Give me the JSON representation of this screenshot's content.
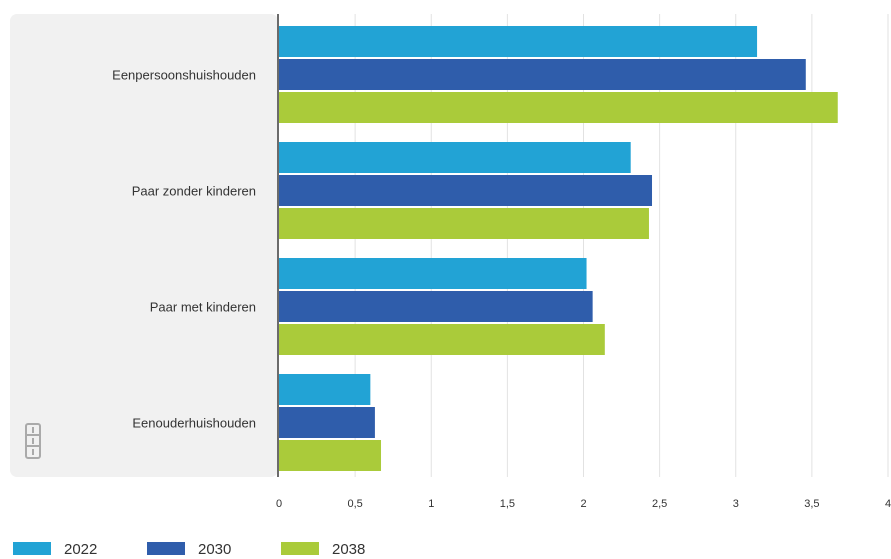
{
  "chart_data": {
    "type": "bar",
    "orientation": "horizontal",
    "categories": [
      "Eenpersoonshuishouden",
      "Paar zonder kinderen",
      "Paar met kinderen",
      "Eenouderhuishouden"
    ],
    "series": [
      {
        "name": "2022",
        "color": "#22a3d5",
        "values": [
          3.14,
          2.31,
          2.02,
          0.6
        ]
      },
      {
        "name": "2030",
        "color": "#2f5dab",
        "values": [
          3.46,
          2.45,
          2.06,
          0.63
        ]
      },
      {
        "name": "2038",
        "color": "#aacb3a",
        "values": [
          3.67,
          2.43,
          2.14,
          0.67
        ]
      }
    ],
    "x_ticks": [
      "0",
      "0,5",
      "1",
      "1,5",
      "2",
      "2,5",
      "3",
      "3,5",
      "4"
    ],
    "xlim": [
      0,
      4
    ],
    "grid": true,
    "legend_position": "bottom-left",
    "title": "",
    "xlabel": "",
    "ylabel": ""
  },
  "logo": {
    "text": "cbs",
    "icon": "cbs-logo-icon"
  }
}
